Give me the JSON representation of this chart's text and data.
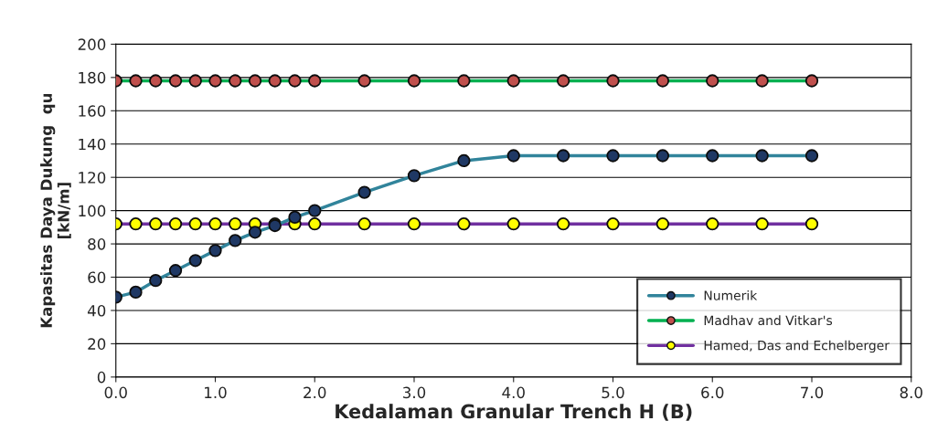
{
  "chart_data": {
    "type": "line",
    "xlabel": "Kedalaman Granular Trench H (B)",
    "ylabel": "Kapasitas Daya Dukung  qu\n[kN/m]",
    "x": [
      0.0,
      0.2,
      0.4,
      0.6,
      0.8,
      1.0,
      1.2,
      1.4,
      1.6,
      1.8,
      2.0,
      2.5,
      3.0,
      3.5,
      4.0,
      4.5,
      5.0,
      5.5,
      6.0,
      6.5,
      7.0
    ],
    "series": [
      {
        "name": "Numerik",
        "color": "#31849b",
        "values": [
          48,
          51,
          58,
          64,
          70,
          76,
          82,
          87,
          91,
          96,
          100,
          111,
          121,
          130,
          133,
          133,
          133,
          133,
          133,
          133,
          133
        ]
      },
      {
        "name": "Madhav and Vitkar's",
        "color": "#00b050",
        "values": [
          178,
          178,
          178,
          178,
          178,
          178,
          178,
          178,
          178,
          178,
          178,
          178,
          178,
          178,
          178,
          178,
          178,
          178,
          178,
          178,
          178
        ]
      },
      {
        "name": "Hamed, Das and Echelberger",
        "color": "#7030a0",
        "values": [
          92,
          92,
          92,
          92,
          92,
          92,
          92,
          92,
          92,
          92,
          92,
          92,
          92,
          92,
          92,
          92,
          92,
          92,
          92,
          92,
          92
        ]
      }
    ],
    "xlim": [
      0,
      8
    ],
    "xticks": [
      {
        "value": 0,
        "label": "0.0"
      },
      {
        "value": 1,
        "label": "1.0"
      },
      {
        "value": 2,
        "label": "2.0"
      },
      {
        "value": 3,
        "label": "3.0"
      },
      {
        "value": 4,
        "label": "4.0"
      },
      {
        "value": 5,
        "label": "5.0"
      },
      {
        "value": 6,
        "label": "6.0"
      },
      {
        "value": 7,
        "label": "7.0"
      },
      {
        "value": 8,
        "label": "8.0"
      }
    ],
    "ylim": [
      0,
      200
    ],
    "yticks": [
      0,
      20,
      40,
      60,
      80,
      100,
      120,
      140,
      160,
      180,
      200
    ],
    "grid": "y",
    "legend": "bottom right",
    "marker": "circle",
    "line_style": "solid"
  }
}
